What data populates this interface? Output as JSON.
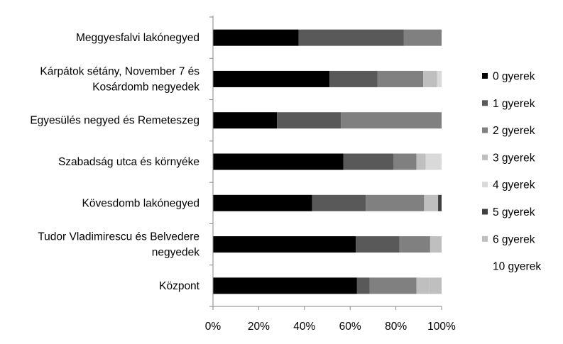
{
  "chart_data": {
    "type": "bar",
    "orientation": "horizontal",
    "stacked": "percent",
    "title": "",
    "xlabel": "",
    "ylabel": "",
    "xlim": [
      0,
      100
    ],
    "x_ticks": [
      "0%",
      "20%",
      "40%",
      "60%",
      "80%",
      "100%"
    ],
    "grid": false,
    "legend_position": "right",
    "categories": [
      "Meggyesfalvi lakónegyed",
      "Kárpátok sétány, November 7 és Kosárdomb negyedek",
      "Egyesülés negyed és Remeteszeg",
      "Szabadság utca és környéke",
      "Kövesdomb lakónegyed",
      "Tudor Vladimirescu és Belvedere negyedek",
      "Központ"
    ],
    "category_lines": [
      [
        "Meggyesfalvi lakónegyed"
      ],
      [
        "Kárpátok sétány, November 7 és",
        "Kosárdomb negyedek"
      ],
      [
        "Egyesülés negyed és Remeteszeg"
      ],
      [
        "Szabadság utca és környéke"
      ],
      [
        "Kövesdomb lakónegyed"
      ],
      [
        "Tudor Vladimirescu és Belvedere",
        "negyedek"
      ],
      [
        "Központ"
      ]
    ],
    "series": [
      {
        "name": "0 gyerek",
        "color": "#000000",
        "values": [
          37.5,
          51,
          28,
          57,
          42.5,
          62.5,
          63
        ]
      },
      {
        "name": "1 gyerek",
        "color": "#595959",
        "values": [
          46,
          21,
          28,
          22,
          23,
          19,
          5.5
        ]
      },
      {
        "name": "2 gyerek",
        "color": "#808080",
        "values": [
          16.5,
          20,
          44,
          10,
          25,
          13.5,
          20.5
        ]
      },
      {
        "name": "3 gyerek",
        "color": "#bfbfbf",
        "values": [
          0,
          6,
          0,
          4,
          6,
          0,
          5.5
        ]
      },
      {
        "name": "4 gyerek",
        "color": "#d9d9d9",
        "values": [
          0,
          2,
          0,
          7,
          0,
          0,
          0
        ]
      },
      {
        "name": "5 gyerek",
        "color": "#404040",
        "values": [
          0,
          0,
          0,
          0,
          1.5,
          0,
          0
        ]
      },
      {
        "name": "6 gyerek",
        "color": "#bfbfbf",
        "values": [
          0,
          0,
          0,
          0,
          0,
          5,
          5.5
        ]
      },
      {
        "name": "10 gyerek",
        "color": "#ffffff",
        "values": [
          0,
          0,
          0,
          0,
          0,
          0,
          0
        ]
      }
    ]
  }
}
